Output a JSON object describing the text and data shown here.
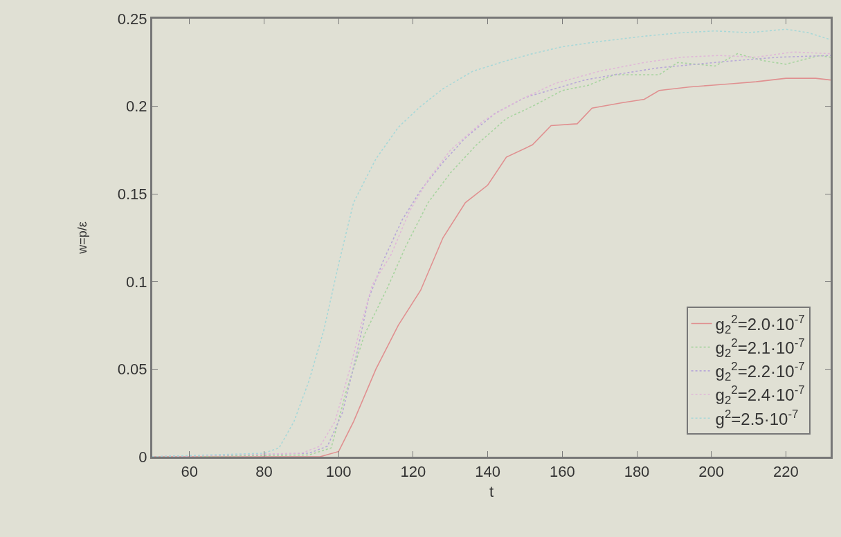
{
  "chart_data": {
    "type": "line",
    "xlabel": "t",
    "ylabel": "w=p/ε",
    "xlim": [
      50,
      232
    ],
    "ylim": [
      0,
      0.25
    ],
    "xticks": [
      60,
      80,
      100,
      120,
      140,
      160,
      180,
      200,
      220
    ],
    "yticks": [
      0,
      0.05,
      0.1,
      0.15,
      0.2,
      0.25
    ],
    "grid": false,
    "legend": "bottom right",
    "marker": "none",
    "series": [
      {
        "name": "g$_{2}$$^{2}$=2.0·10$^{-7}$",
        "color": "#e09090",
        "line_style": "solid",
        "x": [
          50,
          95,
          100,
          104,
          110,
          116,
          122,
          128,
          134,
          140,
          145,
          152,
          157,
          164,
          168,
          176,
          182,
          186,
          194,
          200,
          206,
          212,
          220,
          228,
          232
        ],
        "values": [
          0,
          0,
          0.003,
          0.02,
          0.05,
          0.075,
          0.095,
          0.125,
          0.145,
          0.155,
          0.171,
          0.178,
          0.189,
          0.19,
          0.199,
          0.202,
          0.204,
          0.209,
          0.211,
          0.212,
          0.213,
          0.214,
          0.216,
          0.216,
          0.215
        ]
      },
      {
        "name": "g$_{2}$$^{2}$=2.1·10$^{-7}$",
        "color": "#a8d4a0",
        "line_style": "dotted",
        "x": [
          50,
          92,
          98,
          102,
          107,
          113,
          118,
          124,
          130,
          137,
          145,
          152,
          160,
          167,
          174,
          186,
          191,
          201,
          207,
          214,
          220,
          229,
          232
        ],
        "values": [
          0,
          0.001,
          0.005,
          0.037,
          0.07,
          0.096,
          0.12,
          0.145,
          0.162,
          0.178,
          0.193,
          0.2,
          0.209,
          0.212,
          0.218,
          0.218,
          0.225,
          0.223,
          0.23,
          0.226,
          0.224,
          0.229,
          0.228
        ]
      },
      {
        "name": "g$_{2}$$^{2}$=2.2·10$^{-7}$",
        "color": "#b8a8d8",
        "line_style": "dotted",
        "x": [
          50,
          92,
          97,
          101,
          105,
          108,
          112,
          117,
          122,
          128,
          134,
          142,
          150,
          158,
          166,
          174,
          186,
          196,
          206,
          218,
          232
        ],
        "values": [
          0,
          0.002,
          0.006,
          0.025,
          0.06,
          0.09,
          0.112,
          0.135,
          0.152,
          0.168,
          0.182,
          0.196,
          0.205,
          0.21,
          0.215,
          0.218,
          0.222,
          0.224,
          0.226,
          0.228,
          0.229
        ]
      },
      {
        "name": "g$_{2}$$^{2}$=2.4·10$^{-7}$",
        "color": "#e0b8d8",
        "line_style": "dotted",
        "x": [
          50,
          90,
          95,
          99,
          103,
          106,
          109,
          114,
          119,
          124,
          130,
          139,
          148,
          158,
          170,
          182,
          192,
          202,
          212,
          222,
          232
        ],
        "values": [
          0,
          0.002,
          0.006,
          0.02,
          0.05,
          0.075,
          0.098,
          0.115,
          0.14,
          0.158,
          0.175,
          0.192,
          0.203,
          0.213,
          0.22,
          0.225,
          0.228,
          0.229,
          0.228,
          0.231,
          0.23
        ]
      },
      {
        "name": "g$^{2}$=2.5·10$^{-7}$",
        "color": "#a8d8d8",
        "line_style": "dotted",
        "x": [
          50,
          80,
          84,
          88,
          92,
          96,
          100,
          104,
          110,
          116,
          122,
          128,
          136,
          145,
          152,
          160,
          170,
          182,
          192,
          201,
          210,
          220,
          226,
          232
        ],
        "values": [
          0,
          0.002,
          0.005,
          0.02,
          0.043,
          0.072,
          0.11,
          0.145,
          0.17,
          0.188,
          0.2,
          0.21,
          0.22,
          0.226,
          0.23,
          0.234,
          0.237,
          0.24,
          0.242,
          0.243,
          0.242,
          0.244,
          0.242,
          0.238
        ]
      }
    ]
  }
}
